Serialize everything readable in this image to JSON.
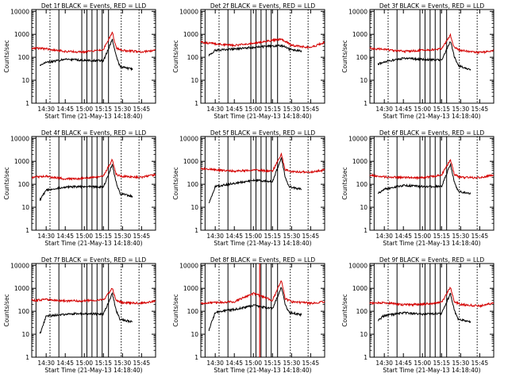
{
  "colors": {
    "events": "#000000",
    "lld": "#d40000",
    "axes": "#000000"
  },
  "chart_data": [
    {
      "type": "line",
      "title": "Det 1f BLACK = Events, RED = LLD",
      "xlabel": "Start Time (21-May-13 14:18:40)",
      "ylabel": "Counts/sec",
      "x_ticks": [
        "14:30",
        "14:45",
        "15:00",
        "15:15",
        "15:30",
        "15:45"
      ],
      "y_ticks": [
        "1",
        "10",
        "100",
        "1000",
        "10000"
      ],
      "yscale": "log",
      "ylim": [
        1,
        12000
      ],
      "xlim": [
        "14:18:40",
        "15:56:00"
      ],
      "grid": false,
      "series": [
        {
          "name": "Events",
          "x": [
            "14:25",
            "14:30",
            "14:45",
            "15:00",
            "15:15",
            "15:22",
            "15:25",
            "15:28",
            "15:32",
            "15:38"
          ],
          "y": [
            45,
            60,
            80,
            75,
            70,
            600,
            120,
            40,
            35,
            30
          ]
        },
        {
          "name": "LLD",
          "x": [
            "14:18:40",
            "14:30",
            "14:45",
            "15:00",
            "15:15",
            "15:22",
            "15:25",
            "15:30",
            "15:45",
            "15:56"
          ],
          "y": [
            260,
            230,
            180,
            170,
            220,
            1200,
            260,
            200,
            170,
            200
          ]
        }
      ],
      "vlines_solid": [
        "14:22",
        "14:40",
        "14:58",
        "15:02",
        "15:06",
        "15:10",
        "15:14",
        "15:19"
      ],
      "vlines_dotted": [
        "14:33",
        "15:29",
        "15:43"
      ]
    },
    {
      "type": "line",
      "title": "Det 2f BLACK = Events, RED = LLD",
      "xlabel": "Start Time (21-May-13 14:18:40)",
      "ylabel": "Counts/sec",
      "x_ticks": [
        "14:30",
        "14:45",
        "15:00",
        "15:15",
        "15:30",
        "15:45"
      ],
      "y_ticks": [
        "1",
        "10",
        "100",
        "1000",
        "10000"
      ],
      "yscale": "log",
      "ylim": [
        1,
        12000
      ],
      "xlim": [
        "14:18:40",
        "15:56:00"
      ],
      "grid": false,
      "series": [
        {
          "name": "Events",
          "x": [
            "14:25",
            "14:30",
            "14:45",
            "15:00",
            "15:15",
            "15:22",
            "15:25",
            "15:28",
            "15:32",
            "15:38"
          ],
          "y": [
            120,
            200,
            230,
            270,
            310,
            320,
            290,
            230,
            200,
            190
          ]
        },
        {
          "name": "LLD",
          "x": [
            "14:18:40",
            "14:30",
            "14:45",
            "15:00",
            "15:15",
            "15:22",
            "15:25",
            "15:30",
            "15:45",
            "15:56"
          ],
          "y": [
            450,
            380,
            330,
            420,
            550,
            600,
            500,
            330,
            260,
            450
          ]
        }
      ],
      "vlines_solid": [
        "14:22",
        "14:40",
        "14:58",
        "15:02",
        "15:06",
        "15:10",
        "15:14",
        "15:19"
      ],
      "vlines_dotted": [
        "14:33",
        "15:29",
        "15:43"
      ]
    },
    {
      "type": "line",
      "title": "Det 3f BLACK = Events, RED = LLD",
      "xlabel": "Start Time (21-May-13 14:18:40)",
      "ylabel": "Counts/sec",
      "x_ticks": [
        "14:30",
        "14:45",
        "15:00",
        "15:15",
        "15:30",
        "15:45"
      ],
      "y_ticks": [
        "1",
        "10",
        "100",
        "1000",
        "10000"
      ],
      "yscale": "log",
      "ylim": [
        1,
        12000
      ],
      "xlim": [
        "14:18:40",
        "15:56:00"
      ],
      "grid": false,
      "series": [
        {
          "name": "Events",
          "x": [
            "14:25",
            "14:30",
            "14:45",
            "15:00",
            "15:15",
            "15:22",
            "15:25",
            "15:28",
            "15:32",
            "15:38"
          ],
          "y": [
            50,
            65,
            90,
            80,
            75,
            500,
            110,
            45,
            35,
            30
          ]
        },
        {
          "name": "LLD",
          "x": [
            "14:18:40",
            "14:30",
            "14:45",
            "15:00",
            "15:15",
            "15:22",
            "15:25",
            "15:30",
            "15:45",
            "15:56"
          ],
          "y": [
            240,
            220,
            180,
            200,
            230,
            900,
            260,
            200,
            160,
            190
          ]
        }
      ],
      "vlines_solid": [
        "14:22",
        "14:40",
        "14:58",
        "15:02",
        "15:06",
        "15:10",
        "15:14",
        "15:19"
      ],
      "vlines_dotted": [
        "14:33",
        "15:29",
        "15:43"
      ]
    },
    {
      "type": "line",
      "title": "Det 4f BLACK = Events, RED = LLD",
      "xlabel": "Start Time (21-May-13 14:18:40)",
      "ylabel": "Counts/sec",
      "x_ticks": [
        "14:30",
        "14:45",
        "15:00",
        "15:15",
        "15:30",
        "15:45"
      ],
      "y_ticks": [
        "1",
        "10",
        "100",
        "1000",
        "10000"
      ],
      "yscale": "log",
      "ylim": [
        1,
        12000
      ],
      "xlim": [
        "14:18:40",
        "15:56:00"
      ],
      "grid": false,
      "series": [
        {
          "name": "Events",
          "x": [
            "14:25",
            "14:30",
            "14:45",
            "15:00",
            "15:15",
            "15:22",
            "15:25",
            "15:28",
            "15:32",
            "15:38"
          ],
          "y": [
            20,
            55,
            75,
            80,
            75,
            700,
            120,
            40,
            35,
            30
          ]
        },
        {
          "name": "LLD",
          "x": [
            "14:18:40",
            "14:30",
            "14:45",
            "15:00",
            "15:15",
            "15:22",
            "15:25",
            "15:30",
            "15:45",
            "15:56"
          ],
          "y": [
            200,
            220,
            170,
            180,
            220,
            1200,
            270,
            220,
            200,
            260
          ]
        }
      ],
      "vlines_solid": [
        "14:22",
        "14:40",
        "14:58",
        "15:02",
        "15:06",
        "15:10",
        "15:14",
        "15:19"
      ],
      "vlines_dotted": [
        "14:33",
        "15:29",
        "15:43"
      ]
    },
    {
      "type": "line",
      "title": "Det 5f BLACK = Events, RED = LLD",
      "xlabel": "Start Time (21-May-13 14:18:40)",
      "ylabel": "Counts/sec",
      "x_ticks": [
        "14:30",
        "14:45",
        "15:00",
        "15:15",
        "15:30",
        "15:45"
      ],
      "y_ticks": [
        "1",
        "10",
        "100",
        "1000",
        "10000"
      ],
      "yscale": "log",
      "ylim": [
        1,
        12000
      ],
      "xlim": [
        "14:18:40",
        "15:56:00"
      ],
      "grid": false,
      "series": [
        {
          "name": "Events",
          "x": [
            "14:25",
            "14:30",
            "14:45",
            "15:00",
            "15:15",
            "15:22",
            "15:25",
            "15:28",
            "15:32",
            "15:38"
          ],
          "y": [
            15,
            80,
            110,
            150,
            130,
            1500,
            200,
            80,
            70,
            60
          ]
        },
        {
          "name": "LLD",
          "x": [
            "14:18:40",
            "14:30",
            "14:45",
            "15:00",
            "15:15",
            "15:22",
            "15:25",
            "15:30",
            "15:45",
            "15:56"
          ],
          "y": [
            480,
            430,
            370,
            420,
            380,
            2000,
            420,
            360,
            330,
            420
          ]
        }
      ],
      "vlines_solid": [
        "14:22",
        "14:40",
        "14:58",
        "15:02",
        "15:06",
        "15:10",
        "15:14",
        "15:19"
      ],
      "vlines_dotted": [
        "14:33",
        "15:29",
        "15:43"
      ]
    },
    {
      "type": "line",
      "title": "Det 6f BLACK = Events, RED = LLD",
      "xlabel": "Start Time (21-May-13 14:18:40)",
      "ylabel": "Counts/sec",
      "x_ticks": [
        "14:30",
        "14:45",
        "15:00",
        "15:15",
        "15:30",
        "15:45"
      ],
      "y_ticks": [
        "1",
        "10",
        "100",
        "1000",
        "10000"
      ],
      "yscale": "log",
      "ylim": [
        1,
        12000
      ],
      "xlim": [
        "14:18:40",
        "15:56:00"
      ],
      "grid": false,
      "series": [
        {
          "name": "Events",
          "x": [
            "14:25",
            "14:30",
            "14:45",
            "15:00",
            "15:15",
            "15:22",
            "15:25",
            "15:28",
            "15:32",
            "15:38"
          ],
          "y": [
            40,
            60,
            90,
            80,
            80,
            750,
            130,
            50,
            45,
            40
          ]
        },
        {
          "name": "LLD",
          "x": [
            "14:18:40",
            "14:30",
            "14:45",
            "15:00",
            "15:15",
            "15:22",
            "15:25",
            "15:30",
            "15:45",
            "15:56"
          ],
          "y": [
            250,
            210,
            200,
            190,
            250,
            1200,
            270,
            200,
            190,
            250
          ]
        }
      ],
      "vlines_solid": [
        "14:22",
        "14:40",
        "14:58",
        "15:02",
        "15:06",
        "15:10",
        "15:14",
        "15:19"
      ],
      "vlines_dotted": [
        "14:33",
        "15:29",
        "15:43"
      ]
    },
    {
      "type": "line",
      "title": "Det 7f BLACK = Events, RED = LLD",
      "xlabel": "Start Time (21-May-13 14:18:40)",
      "ylabel": "Counts/sec",
      "x_ticks": [
        "14:30",
        "14:45",
        "15:00",
        "15:15",
        "15:30",
        "15:45"
      ],
      "y_ticks": [
        "1",
        "10",
        "100",
        "1000",
        "10000"
      ],
      "yscale": "log",
      "ylim": [
        1,
        12000
      ],
      "xlim": [
        "14:18:40",
        "15:56:00"
      ],
      "grid": false,
      "series": [
        {
          "name": "Events",
          "x": [
            "14:25",
            "14:30",
            "14:45",
            "15:00",
            "15:15",
            "15:22",
            "15:25",
            "15:28",
            "15:32",
            "15:38"
          ],
          "y": [
            10,
            60,
            75,
            80,
            75,
            600,
            110,
            45,
            40,
            35
          ]
        },
        {
          "name": "LLD",
          "x": [
            "14:18:40",
            "14:30",
            "14:45",
            "15:00",
            "15:15",
            "15:22",
            "15:25",
            "15:30",
            "15:45",
            "15:56"
          ],
          "y": [
            300,
            320,
            280,
            290,
            310,
            1000,
            300,
            240,
            220,
            280
          ]
        }
      ],
      "vlines_solid": [
        "14:22",
        "14:40",
        "14:58",
        "15:02",
        "15:06",
        "15:10",
        "15:14",
        "15:19"
      ],
      "vlines_dotted": [
        "14:33",
        "15:29",
        "15:43"
      ]
    },
    {
      "type": "line",
      "title": "Det 8f BLACK = Events, RED = LLD",
      "xlabel": "Start Time (21-May-13 14:18:40)",
      "ylabel": "Counts/sec",
      "x_ticks": [
        "14:30",
        "14:45",
        "15:00",
        "15:15",
        "15:30",
        "15:45"
      ],
      "y_ticks": [
        "1",
        "10",
        "100",
        "1000",
        "10000"
      ],
      "yscale": "log",
      "ylim": [
        1,
        12000
      ],
      "xlim": [
        "14:18:40",
        "15:56:00"
      ],
      "grid": false,
      "series": [
        {
          "name": "Events",
          "x": [
            "14:25",
            "14:30",
            "14:45",
            "15:00",
            "15:15",
            "15:22",
            "15:25",
            "15:28",
            "15:32",
            "15:38"
          ],
          "y": [
            15,
            90,
            120,
            180,
            130,
            1100,
            200,
            90,
            80,
            70
          ]
        },
        {
          "name": "LLD",
          "x": [
            "14:18:40",
            "14:30",
            "14:45",
            "15:00",
            "15:15",
            "15:22",
            "15:25",
            "15:30",
            "15:45",
            "15:56"
          ],
          "y": [
            220,
            240,
            260,
            600,
            300,
            2200,
            350,
            260,
            220,
            260
          ]
        }
      ],
      "vlines_solid": [
        "14:22",
        "14:40",
        "14:58",
        "15:02",
        "15:06",
        "15:10",
        "15:14",
        "15:19"
      ],
      "vlines_dotted": [
        "14:33",
        "15:29",
        "15:43"
      ],
      "vlines_red": [
        "15:05"
      ]
    },
    {
      "type": "line",
      "title": "Det 9f BLACK = Events, RED = LLD",
      "xlabel": "Start Time (21-May-13 14:18:40)",
      "ylabel": "Counts/sec",
      "x_ticks": [
        "14:30",
        "14:45",
        "15:00",
        "15:15",
        "15:30",
        "15:45"
      ],
      "y_ticks": [
        "1",
        "10",
        "100",
        "1000",
        "10000"
      ],
      "yscale": "log",
      "ylim": [
        1,
        12000
      ],
      "xlim": [
        "14:18:40",
        "15:56:00"
      ],
      "grid": false,
      "series": [
        {
          "name": "Events",
          "x": [
            "14:25",
            "14:30",
            "14:45",
            "15:00",
            "15:15",
            "15:22",
            "15:25",
            "15:28",
            "15:32",
            "15:38"
          ],
          "y": [
            40,
            65,
            85,
            75,
            80,
            600,
            110,
            45,
            40,
            35
          ]
        },
        {
          "name": "LLD",
          "x": [
            "14:18:40",
            "14:30",
            "14:45",
            "15:00",
            "15:15",
            "15:22",
            "15:25",
            "15:30",
            "15:45",
            "15:56"
          ],
          "y": [
            220,
            240,
            190,
            200,
            240,
            1100,
            260,
            200,
            170,
            230
          ]
        }
      ],
      "vlines_solid": [
        "14:22",
        "14:40",
        "14:58",
        "15:02",
        "15:06",
        "15:10",
        "15:14",
        "15:19"
      ],
      "vlines_dotted": [
        "14:33",
        "15:29",
        "15:43"
      ]
    }
  ]
}
